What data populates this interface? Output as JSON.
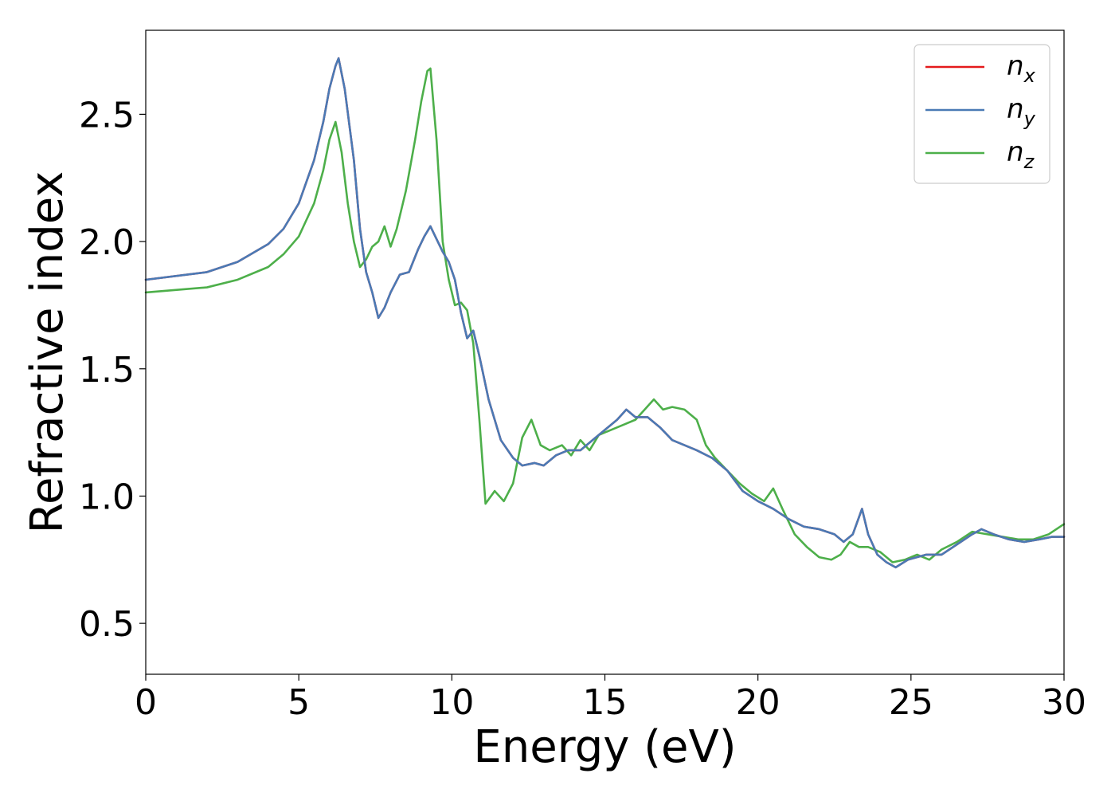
{
  "chart_data": {
    "type": "line",
    "xlabel": "Energy (eV)",
    "ylabel": "Refractive index",
    "xlim": [
      0,
      30
    ],
    "ylim": [
      0.3,
      2.83
    ],
    "xticks": [
      0,
      5,
      10,
      15,
      20,
      25,
      30
    ],
    "yticks": [
      0.5,
      1.0,
      1.5,
      2.0,
      2.5
    ],
    "xtick_labels": [
      "0",
      "5",
      "10",
      "15",
      "20",
      "25",
      "30"
    ],
    "ytick_labels": [
      "0.5",
      "1.0",
      "1.5",
      "2.0",
      "2.5"
    ],
    "grid": false,
    "legend_position": "top-right",
    "series": [
      {
        "name": "n_x",
        "base": "n",
        "sub": "x",
        "color": "#e41a1c",
        "x": [
          0,
          2,
          3,
          4,
          4.5,
          5,
          5.5,
          5.8,
          6.0,
          6.2,
          6.3,
          6.5,
          6.8,
          7.0,
          7.2,
          7.4,
          7.6,
          7.8,
          8.0,
          8.3,
          8.6,
          8.9,
          9.1,
          9.3,
          9.5,
          9.7,
          9.9,
          10.1,
          10.3,
          10.5,
          10.7,
          10.9,
          11.2,
          11.6,
          12.0,
          12.3,
          12.7,
          13.0,
          13.4,
          13.8,
          14.2,
          14.6,
          15.0,
          15.4,
          15.7,
          16.0,
          16.4,
          16.8,
          17.2,
          17.6,
          18.0,
          18.5,
          19.0,
          19.5,
          20.0,
          20.5,
          21.0,
          21.5,
          22.0,
          22.5,
          22.8,
          23.1,
          23.4,
          23.6,
          23.9,
          24.2,
          24.5,
          24.9,
          25.5,
          26.0,
          26.5,
          27.0,
          27.3,
          27.7,
          28.2,
          28.7,
          29.2,
          29.6,
          30.0
        ],
        "y": [
          1.85,
          1.88,
          1.92,
          1.99,
          2.05,
          2.15,
          2.32,
          2.47,
          2.6,
          2.69,
          2.72,
          2.6,
          2.32,
          2.05,
          1.88,
          1.8,
          1.7,
          1.74,
          1.8,
          1.87,
          1.88,
          1.97,
          2.02,
          2.06,
          2.01,
          1.96,
          1.92,
          1.85,
          1.72,
          1.62,
          1.65,
          1.55,
          1.38,
          1.22,
          1.15,
          1.12,
          1.13,
          1.12,
          1.16,
          1.18,
          1.18,
          1.22,
          1.26,
          1.3,
          1.34,
          1.31,
          1.31,
          1.27,
          1.22,
          1.2,
          1.18,
          1.15,
          1.1,
          1.02,
          0.98,
          0.95,
          0.91,
          0.88,
          0.87,
          0.85,
          0.82,
          0.85,
          0.95,
          0.85,
          0.77,
          0.74,
          0.72,
          0.75,
          0.77,
          0.77,
          0.81,
          0.85,
          0.87,
          0.85,
          0.83,
          0.82,
          0.83,
          0.84,
          0.84
        ]
      },
      {
        "name": "n_y",
        "base": "n",
        "sub": "y",
        "color": "#4a7ab5",
        "x": [
          0,
          2,
          3,
          4,
          4.5,
          5,
          5.5,
          5.8,
          6.0,
          6.2,
          6.3,
          6.5,
          6.8,
          7.0,
          7.2,
          7.4,
          7.6,
          7.8,
          8.0,
          8.3,
          8.6,
          8.9,
          9.1,
          9.3,
          9.5,
          9.7,
          9.9,
          10.1,
          10.3,
          10.5,
          10.7,
          10.9,
          11.2,
          11.6,
          12.0,
          12.3,
          12.7,
          13.0,
          13.4,
          13.8,
          14.2,
          14.6,
          15.0,
          15.4,
          15.7,
          16.0,
          16.4,
          16.8,
          17.2,
          17.6,
          18.0,
          18.5,
          19.0,
          19.5,
          20.0,
          20.5,
          21.0,
          21.5,
          22.0,
          22.5,
          22.8,
          23.1,
          23.4,
          23.6,
          23.9,
          24.2,
          24.5,
          24.9,
          25.5,
          26.0,
          26.5,
          27.0,
          27.3,
          27.7,
          28.2,
          28.7,
          29.2,
          29.6,
          30.0
        ],
        "y": [
          1.85,
          1.88,
          1.92,
          1.99,
          2.05,
          2.15,
          2.32,
          2.47,
          2.6,
          2.69,
          2.72,
          2.6,
          2.32,
          2.05,
          1.88,
          1.8,
          1.7,
          1.74,
          1.8,
          1.87,
          1.88,
          1.97,
          2.02,
          2.06,
          2.01,
          1.96,
          1.92,
          1.85,
          1.72,
          1.62,
          1.65,
          1.55,
          1.38,
          1.22,
          1.15,
          1.12,
          1.13,
          1.12,
          1.16,
          1.18,
          1.18,
          1.22,
          1.26,
          1.3,
          1.34,
          1.31,
          1.31,
          1.27,
          1.22,
          1.2,
          1.18,
          1.15,
          1.1,
          1.02,
          0.98,
          0.95,
          0.91,
          0.88,
          0.87,
          0.85,
          0.82,
          0.85,
          0.95,
          0.85,
          0.77,
          0.74,
          0.72,
          0.75,
          0.77,
          0.77,
          0.81,
          0.85,
          0.87,
          0.85,
          0.83,
          0.82,
          0.83,
          0.84,
          0.84
        ]
      },
      {
        "name": "n_z",
        "base": "n",
        "sub": "z",
        "color": "#4daf4a",
        "x": [
          0,
          2,
          3,
          4,
          4.5,
          5,
          5.5,
          5.8,
          6.0,
          6.2,
          6.4,
          6.6,
          6.8,
          7.0,
          7.2,
          7.4,
          7.6,
          7.8,
          8.0,
          8.2,
          8.5,
          8.8,
          9.0,
          9.2,
          9.3,
          9.5,
          9.7,
          9.9,
          10.1,
          10.3,
          10.5,
          10.7,
          10.9,
          11.1,
          11.4,
          11.7,
          12.0,
          12.3,
          12.6,
          12.9,
          13.2,
          13.6,
          13.9,
          14.2,
          14.5,
          14.8,
          15.2,
          15.6,
          16.0,
          16.3,
          16.6,
          16.9,
          17.2,
          17.6,
          18.0,
          18.3,
          18.6,
          19.0,
          19.4,
          19.8,
          20.2,
          20.5,
          20.8,
          21.2,
          21.6,
          22.0,
          22.4,
          22.7,
          23.0,
          23.3,
          23.6,
          24.0,
          24.4,
          24.8,
          25.2,
          25.6,
          26.0,
          26.5,
          27.0,
          27.5,
          28.0,
          28.5,
          29.0,
          29.5,
          30.0
        ],
        "y": [
          1.8,
          1.82,
          1.85,
          1.9,
          1.95,
          2.02,
          2.15,
          2.28,
          2.4,
          2.47,
          2.35,
          2.15,
          2.0,
          1.9,
          1.93,
          1.98,
          2.0,
          2.06,
          1.98,
          2.05,
          2.2,
          2.4,
          2.55,
          2.67,
          2.68,
          2.4,
          2.0,
          1.85,
          1.75,
          1.76,
          1.73,
          1.6,
          1.3,
          0.97,
          1.02,
          0.98,
          1.05,
          1.23,
          1.3,
          1.2,
          1.18,
          1.2,
          1.16,
          1.22,
          1.18,
          1.24,
          1.26,
          1.28,
          1.3,
          1.34,
          1.38,
          1.34,
          1.35,
          1.34,
          1.3,
          1.2,
          1.15,
          1.1,
          1.05,
          1.01,
          0.98,
          1.03,
          0.95,
          0.85,
          0.8,
          0.76,
          0.75,
          0.77,
          0.82,
          0.8,
          0.8,
          0.78,
          0.74,
          0.75,
          0.77,
          0.75,
          0.79,
          0.82,
          0.86,
          0.85,
          0.84,
          0.83,
          0.83,
          0.85,
          0.89
        ]
      }
    ]
  }
}
